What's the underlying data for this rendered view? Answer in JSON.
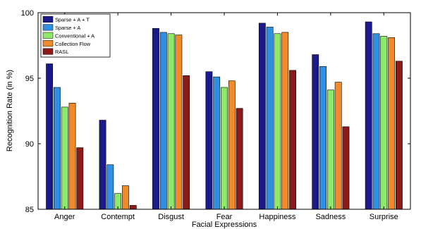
{
  "chart_data": {
    "type": "bar",
    "title": "",
    "xlabel": "Facial Expressions",
    "ylabel": "Recognition Rate (in %)",
    "ylim": [
      85,
      100
    ],
    "yticks": [
      85,
      90,
      95,
      100
    ],
    "grid": false,
    "legend_position": "top-left",
    "categories": [
      "Anger",
      "Contempt",
      "Disgust",
      "Fear",
      "Happiness",
      "Sadness",
      "Surprise"
    ],
    "series": [
      {
        "name": "Sparse + A + T",
        "color": "#1a1a8c",
        "values": [
          96.1,
          91.8,
          98.8,
          95.5,
          99.2,
          96.8,
          99.3
        ]
      },
      {
        "name": "Sparse + A",
        "color": "#2f8fe0",
        "values": [
          94.3,
          88.4,
          98.5,
          95.1,
          98.9,
          95.9,
          98.4
        ]
      },
      {
        "name": "Conventional + A",
        "color": "#8ee86a",
        "values": [
          92.8,
          86.2,
          98.4,
          94.3,
          98.4,
          94.1,
          98.2
        ]
      },
      {
        "name": "Collection Flow",
        "color": "#f08a2a",
        "values": [
          93.1,
          86.8,
          98.3,
          94.8,
          98.5,
          94.7,
          98.1
        ]
      },
      {
        "name": "RASL",
        "color": "#8c1a1a",
        "values": [
          89.7,
          85.3,
          95.2,
          92.7,
          95.6,
          91.3,
          96.3
        ]
      }
    ]
  }
}
